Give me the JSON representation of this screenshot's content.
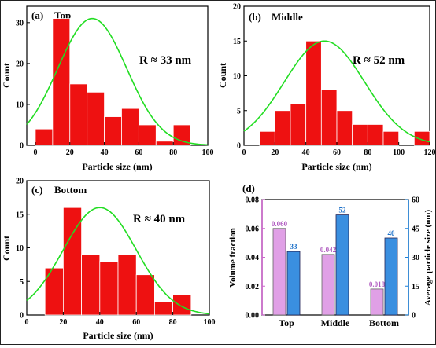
{
  "chart_data": [
    {
      "type": "bar",
      "panel": "(a)",
      "title": "Top",
      "annotation": "R ≈ 33 nm",
      "xlabel": "Particle size (nm)",
      "ylabel": "Count",
      "xlim": [
        -5,
        100
      ],
      "ylim": [
        0,
        34
      ],
      "xticks": [
        0,
        20,
        40,
        60,
        80,
        100
      ],
      "yticks": [
        0,
        10,
        20,
        30
      ],
      "bin_width": 10,
      "bins": [
        5,
        15,
        25,
        35,
        45,
        55,
        65,
        75,
        85
      ],
      "values": [
        4,
        31,
        15,
        13,
        7,
        9,
        5,
        1,
        5
      ],
      "fit": {
        "center": 33,
        "sigma": 20,
        "peak": 31,
        "baseline": 0
      },
      "bar_color": "#ee1111",
      "fit_color": "#22dd22",
      "grid": false,
      "legend": "none"
    },
    {
      "type": "bar",
      "panel": "(b)",
      "title": "Middle",
      "annotation": "R ≈ 52 nm",
      "xlabel": "Particle size (nm)",
      "ylabel": "Count",
      "xlim": [
        0,
        120
      ],
      "ylim": [
        0,
        20
      ],
      "xticks": [
        0,
        20,
        40,
        60,
        80,
        100,
        120
      ],
      "yticks": [
        0,
        5,
        10,
        15,
        20
      ],
      "bin_width": 10,
      "bins": [
        15,
        25,
        35,
        45,
        55,
        65,
        75,
        85,
        95,
        115
      ],
      "values": [
        2,
        5,
        6,
        15,
        8,
        5,
        3,
        3,
        2,
        2
      ],
      "fit": {
        "center": 52,
        "sigma": 26,
        "peak": 15,
        "baseline": 0
      },
      "bar_color": "#ee1111",
      "fit_color": "#22dd22",
      "grid": false,
      "legend": "none"
    },
    {
      "type": "bar",
      "panel": "(c)",
      "title": "Bottom",
      "annotation": "R ≈ 40 nm",
      "xlabel": "Particle size (nm)",
      "ylabel": "Count",
      "xlim": [
        0,
        100
      ],
      "ylim": [
        0,
        20
      ],
      "xticks": [
        0,
        20,
        40,
        60,
        80,
        100
      ],
      "yticks": [
        0,
        5,
        10,
        15,
        20
      ],
      "bin_width": 10,
      "bins": [
        15,
        25,
        35,
        45,
        55,
        65,
        75,
        85
      ],
      "values": [
        7,
        16,
        9,
        8,
        9,
        6,
        2,
        3
      ],
      "fit": {
        "center": 40,
        "sigma": 20,
        "peak": 16,
        "baseline": 0
      },
      "bar_color": "#ee1111",
      "fit_color": "#22dd22",
      "grid": false,
      "legend": "none"
    },
    {
      "type": "bar",
      "panel": "(d)",
      "categories": [
        "Top",
        "Middle",
        "Bottom"
      ],
      "ylabel": "Volume fraction",
      "y2label": "Average particle size (nm)",
      "ylim": [
        0,
        0.08
      ],
      "y2lim": [
        0,
        60
      ],
      "yticks": [
        "0.00",
        "0.02",
        "0.04",
        "0.06",
        "0.08"
      ],
      "y2ticks": [
        0,
        15,
        30,
        45,
        60
      ],
      "series": [
        {
          "values": [
            0.06,
            0.042,
            0.018
          ],
          "labels": [
            "0.060",
            "0.042",
            "0.018"
          ],
          "axis": "left",
          "color": "#e0a0e6",
          "label_color": "#b05cc0"
        },
        {
          "values": [
            33,
            52,
            40
          ],
          "labels": [
            "33",
            "52",
            "40"
          ],
          "axis": "right",
          "color": "#3a8fe0",
          "label_color": "#1a6fc8"
        }
      ],
      "left_axis_color": "#cc66cc",
      "right_axis_color": "#1a7fd8",
      "grid": false,
      "legend": "none"
    }
  ]
}
